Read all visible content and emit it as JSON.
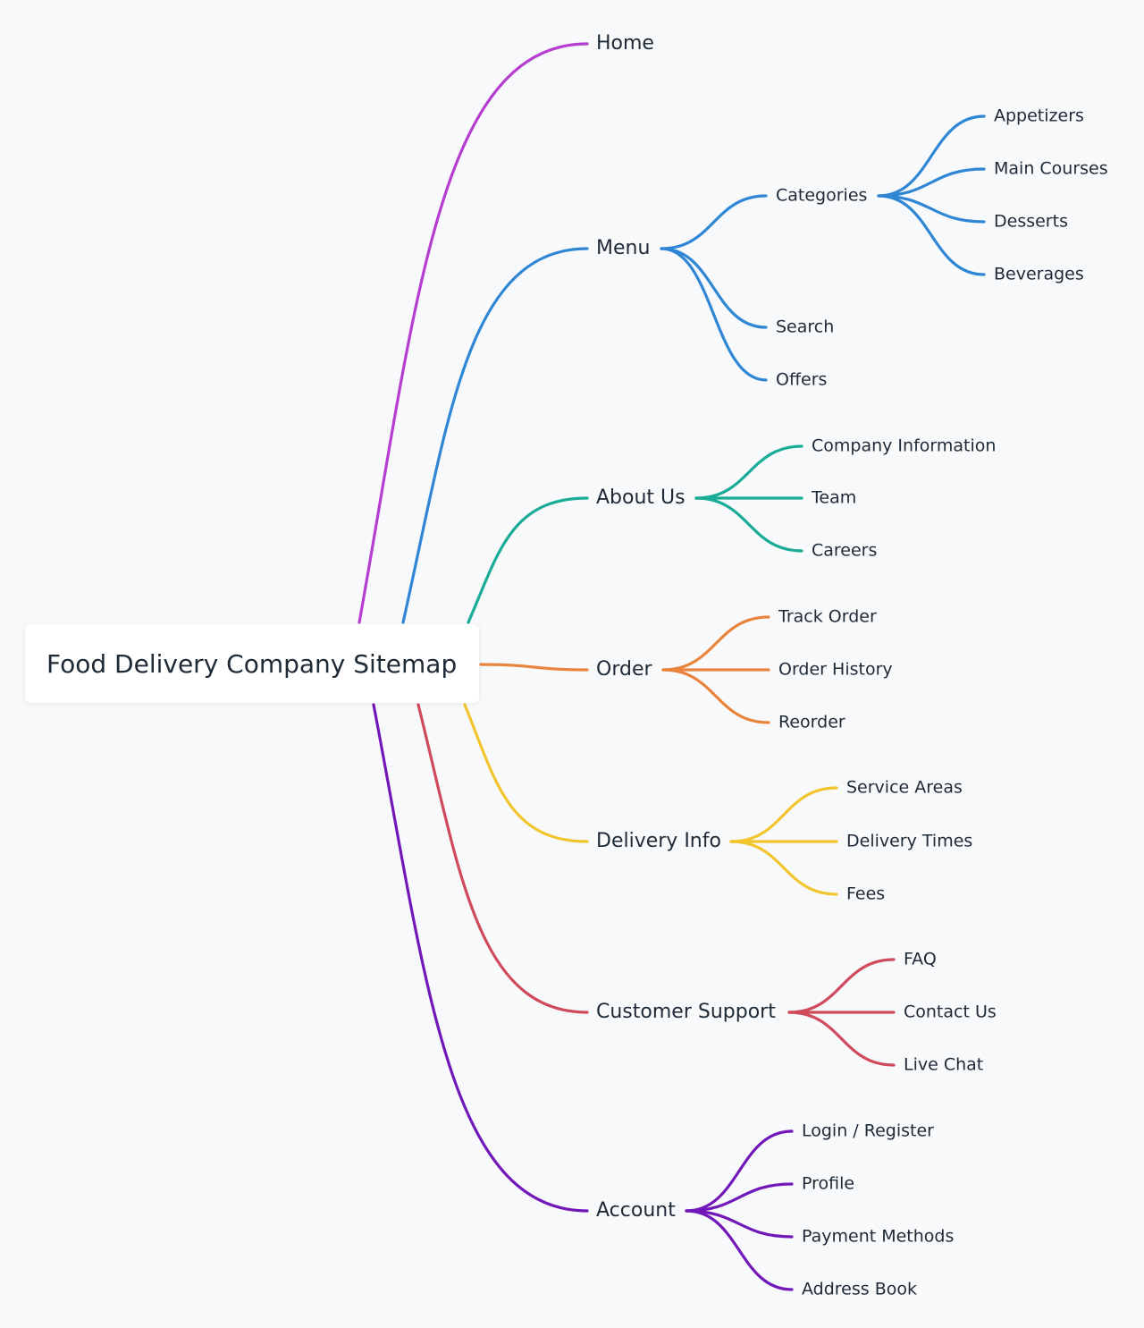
{
  "root": {
    "label": "Food Delivery Company Sitemap"
  },
  "branches": [
    {
      "key": "home",
      "label": "Home",
      "color": "#b53dd0",
      "children": []
    },
    {
      "key": "menu",
      "label": "Menu",
      "color": "#2f86d4",
      "children": [
        {
          "label": "Categories",
          "children": [
            "Appetizers",
            "Main Courses",
            "Desserts",
            "Beverages"
          ]
        },
        {
          "label": "Search",
          "children": []
        },
        {
          "label": "Offers",
          "children": []
        }
      ]
    },
    {
      "key": "about",
      "label": "About Us",
      "color": "#1aab96",
      "children": [
        {
          "label": "Company Information",
          "children": []
        },
        {
          "label": "Team",
          "children": []
        },
        {
          "label": "Careers",
          "children": []
        }
      ]
    },
    {
      "key": "order",
      "label": "Order",
      "color": "#e8843c",
      "children": [
        {
          "label": "Track Order",
          "children": []
        },
        {
          "label": "Order History",
          "children": []
        },
        {
          "label": "Reorder",
          "children": []
        }
      ]
    },
    {
      "key": "delivery",
      "label": "Delivery Info",
      "color": "#f2c52e",
      "children": [
        {
          "label": "Service Areas",
          "children": []
        },
        {
          "label": "Delivery Times",
          "children": []
        },
        {
          "label": "Fees",
          "children": []
        }
      ]
    },
    {
      "key": "support",
      "label": "Customer Support",
      "color": "#cf4a5a",
      "children": [
        {
          "label": "FAQ",
          "children": []
        },
        {
          "label": "Contact Us",
          "children": []
        },
        {
          "label": "Live Chat",
          "children": []
        }
      ]
    },
    {
      "key": "account",
      "label": "Account",
      "color": "#7218b8",
      "children": [
        {
          "label": "Login / Register",
          "children": []
        },
        {
          "label": "Profile",
          "children": []
        },
        {
          "label": "Payment Methods",
          "children": []
        },
        {
          "label": "Address Book",
          "children": []
        }
      ]
    }
  ]
}
